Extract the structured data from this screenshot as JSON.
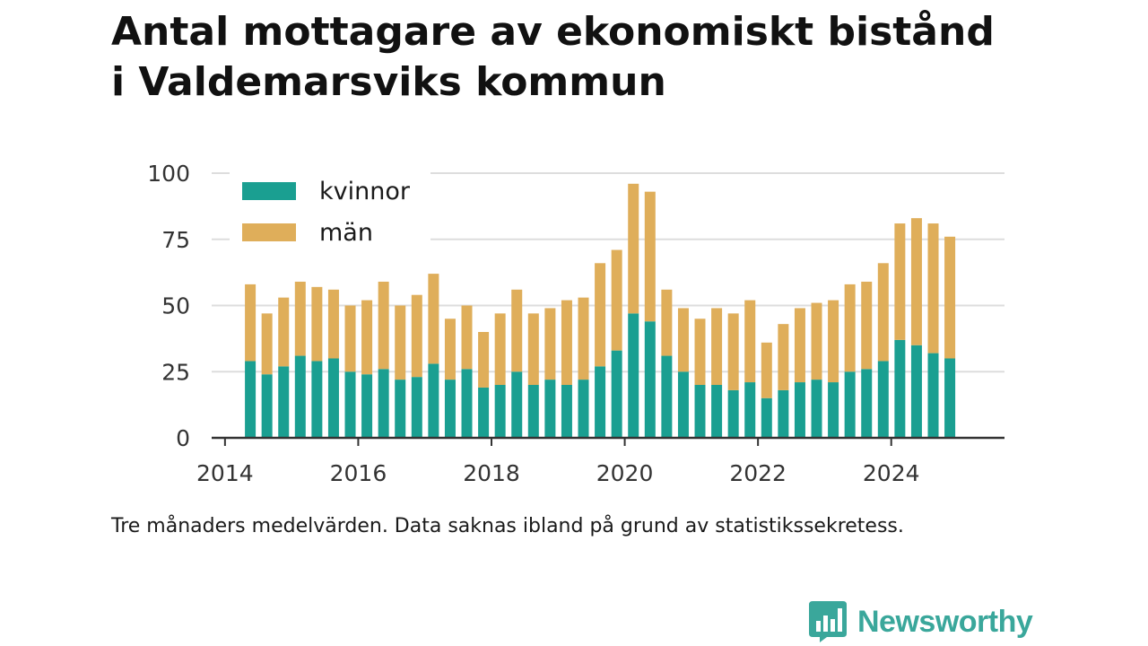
{
  "title_lines": [
    "Antal mottagare av ekonomiskt bistånd",
    "i Valdemarsviks kommun"
  ],
  "footnote": "Tre månaders medelvärden. Data saknas ibland på grund av statistikssekretess.",
  "brand": "Newsworthy",
  "colors": {
    "kvinnor": "#1a9f91",
    "man": "#dfae5a",
    "grid": "#dddddd",
    "axis": "#333333",
    "brand": "#3aa79b"
  },
  "chart_data": {
    "type": "bar",
    "stacked": true,
    "x_axis": {
      "range": [
        2013.8,
        2025.7
      ],
      "ticks": [
        2014,
        2016,
        2018,
        2020,
        2022,
        2024
      ]
    },
    "y_axis": {
      "range": [
        0,
        100
      ],
      "ticks": [
        0,
        25,
        50,
        75,
        100
      ]
    },
    "grid": "horizontal",
    "legend_position": "top-left",
    "x": [
      2014.38,
      2014.63,
      2014.88,
      2015.13,
      2015.38,
      2015.63,
      2015.88,
      2016.13,
      2016.38,
      2016.63,
      2016.88,
      2017.13,
      2017.38,
      2017.63,
      2017.88,
      2018.13,
      2018.38,
      2018.63,
      2018.88,
      2019.13,
      2019.38,
      2019.63,
      2019.88,
      2020.13,
      2020.38,
      2020.63,
      2020.88,
      2021.13,
      2021.38,
      2021.63,
      2021.88,
      2022.13,
      2022.38,
      2022.63,
      2022.88,
      2023.13,
      2023.38,
      2023.63,
      2023.88,
      2024.13,
      2024.38,
      2024.63,
      2024.88
    ],
    "series": [
      {
        "name": "kvinnor",
        "color_key": "kvinnor",
        "values": [
          29,
          24,
          27,
          31,
          29,
          30,
          25,
          24,
          26,
          22,
          23,
          28,
          22,
          26,
          19,
          20,
          25,
          20,
          22,
          20,
          22,
          27,
          33,
          47,
          44,
          31,
          25,
          20,
          20,
          18,
          21,
          15,
          18,
          21,
          22,
          21,
          25,
          26,
          29,
          37,
          35,
          32,
          30
        ]
      },
      {
        "name": "män",
        "color_key": "man",
        "values": [
          29,
          23,
          26,
          28,
          28,
          26,
          25,
          28,
          33,
          28,
          31,
          34,
          23,
          24,
          21,
          27,
          31,
          27,
          27,
          32,
          31,
          39,
          38,
          49,
          49,
          25,
          24,
          25,
          29,
          29,
          31,
          21,
          25,
          28,
          29,
          31,
          33,
          33,
          37,
          44,
          48,
          49,
          46
        ]
      }
    ]
  }
}
